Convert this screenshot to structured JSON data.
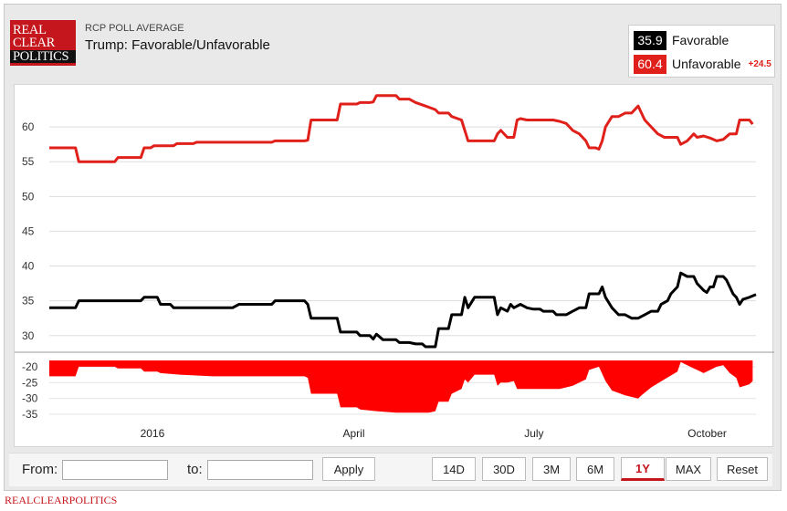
{
  "header": {
    "logo_line1": "REAL",
    "logo_line2": "CLEAR",
    "logo_line3": "POLITICS",
    "supertitle": "RCP POLL AVERAGE",
    "title": "Trump: Favorable/Unfavorable"
  },
  "legend": {
    "items": [
      {
        "value": "35.9",
        "name": "Favorable",
        "color": "#000000"
      },
      {
        "value": "60.4",
        "name": "Unfavorable",
        "color": "#e0201a",
        "spread": "+24.5"
      }
    ]
  },
  "controls": {
    "from_label": "From:",
    "to_label": "to:",
    "apply_label": "Apply",
    "ranges": [
      "14D",
      "30D",
      "3M",
      "6M",
      "1Y",
      "MAX",
      "Reset"
    ],
    "active_range": "1Y"
  },
  "footer": {
    "brand": "REALCLEARPOLITICS"
  },
  "chart_data": {
    "type": "line",
    "x_tick_labels": [
      "2016",
      "April",
      "July",
      "October"
    ],
    "x_tick_positions": [
      0.195,
      0.48,
      0.735,
      0.98
    ],
    "y_ticks": [
      30,
      35,
      40,
      45,
      50,
      55,
      60
    ],
    "ylim": [
      28,
      65
    ],
    "spread_ticks": [
      -20,
      -25,
      -30,
      -35
    ],
    "spread_ylim": [
      -37,
      -18
    ],
    "legend_position": "top-right",
    "grid": true,
    "series": [
      {
        "name": "Favorable",
        "color": "#000000",
        "points": [
          [
            0,
            34
          ],
          [
            0.04,
            34
          ],
          [
            0.045,
            35
          ],
          [
            0.07,
            35
          ],
          [
            0.14,
            35
          ],
          [
            0.145,
            35.5
          ],
          [
            0.165,
            35.5
          ],
          [
            0.17,
            34.5
          ],
          [
            0.185,
            34.5
          ],
          [
            0.19,
            34
          ],
          [
            0.22,
            34
          ],
          [
            0.25,
            34
          ],
          [
            0.28,
            34
          ],
          [
            0.29,
            34.5
          ],
          [
            0.34,
            34.5
          ],
          [
            0.345,
            35
          ],
          [
            0.39,
            35
          ],
          [
            0.395,
            34.5
          ],
          [
            0.4,
            32.5
          ],
          [
            0.44,
            32.5
          ],
          [
            0.445,
            30.5
          ],
          [
            0.47,
            30.5
          ],
          [
            0.475,
            30
          ],
          [
            0.49,
            30
          ],
          [
            0.495,
            29.5
          ],
          [
            0.5,
            30.2
          ],
          [
            0.51,
            29.4
          ],
          [
            0.53,
            29.4
          ],
          [
            0.535,
            29
          ],
          [
            0.55,
            29
          ],
          [
            0.56,
            28.8
          ],
          [
            0.57,
            28.8
          ],
          [
            0.575,
            28.4
          ],
          [
            0.59,
            28.4
          ],
          [
            0.595,
            31
          ],
          [
            0.61,
            31
          ],
          [
            0.615,
            33
          ],
          [
            0.63,
            33
          ],
          [
            0.635,
            35.5
          ],
          [
            0.64,
            34
          ],
          [
            0.65,
            35.5
          ],
          [
            0.67,
            35.5
          ],
          [
            0.68,
            35.5
          ],
          [
            0.685,
            33
          ],
          [
            0.69,
            34
          ],
          [
            0.7,
            33.5
          ],
          [
            0.705,
            34.5
          ],
          [
            0.71,
            34
          ],
          [
            0.72,
            34.5
          ],
          [
            0.73,
            34
          ],
          [
            0.74,
            33.8
          ],
          [
            0.75,
            33.8
          ],
          [
            0.755,
            33.5
          ],
          [
            0.76,
            33.5
          ],
          [
            0.77,
            33.5
          ],
          [
            0.775,
            33
          ],
          [
            0.79,
            33
          ],
          [
            0.8,
            33.5
          ],
          [
            0.81,
            34
          ],
          [
            0.82,
            34
          ],
          [
            0.825,
            36
          ],
          [
            0.84,
            36
          ],
          [
            0.845,
            37
          ],
          [
            0.85,
            35.5
          ],
          [
            0.86,
            34
          ],
          [
            0.87,
            33
          ],
          [
            0.88,
            33
          ],
          [
            0.89,
            32.5
          ],
          [
            0.9,
            32.5
          ],
          [
            0.91,
            33
          ],
          [
            0.92,
            33.5
          ],
          [
            0.93,
            33.5
          ],
          [
            0.935,
            34.5
          ],
          [
            0.945,
            35
          ],
          [
            0.95,
            36
          ],
          [
            0.96,
            37
          ],
          [
            0.965,
            39
          ],
          [
            0.975,
            38.5
          ],
          [
            0.985,
            38.5
          ],
          [
            0.99,
            37.5
          ],
          [
            1.0,
            36.5
          ],
          [
            1.005,
            36.2
          ],
          [
            1.01,
            37
          ],
          [
            1.015,
            37
          ],
          [
            1.02,
            38.5
          ],
          [
            1.03,
            38.5
          ],
          [
            1.035,
            38
          ],
          [
            1.04,
            37
          ],
          [
            1.045,
            36
          ],
          [
            1.05,
            35.5
          ],
          [
            1.055,
            34.5
          ],
          [
            1.06,
            35.2
          ],
          [
            1.07,
            35.5
          ],
          [
            1.08,
            35.9
          ]
        ]
      },
      {
        "name": "Unfavorable",
        "color": "#e0201a",
        "points": [
          [
            0,
            57
          ],
          [
            0.04,
            57
          ],
          [
            0.045,
            55
          ],
          [
            0.07,
            55
          ],
          [
            0.1,
            55
          ],
          [
            0.105,
            55.6
          ],
          [
            0.14,
            55.6
          ],
          [
            0.145,
            57
          ],
          [
            0.155,
            57
          ],
          [
            0.16,
            57.3
          ],
          [
            0.17,
            57.3
          ],
          [
            0.175,
            57.3
          ],
          [
            0.19,
            57.3
          ],
          [
            0.195,
            57.6
          ],
          [
            0.22,
            57.6
          ],
          [
            0.225,
            57.8
          ],
          [
            0.34,
            57.8
          ],
          [
            0.345,
            58
          ],
          [
            0.39,
            58
          ],
          [
            0.395,
            58.1
          ],
          [
            0.4,
            61
          ],
          [
            0.44,
            61
          ],
          [
            0.445,
            63.3
          ],
          [
            0.47,
            63.3
          ],
          [
            0.475,
            63.5
          ],
          [
            0.49,
            63.5
          ],
          [
            0.495,
            63.6
          ],
          [
            0.5,
            64.5
          ],
          [
            0.51,
            64.5
          ],
          [
            0.53,
            64.5
          ],
          [
            0.535,
            64
          ],
          [
            0.55,
            64
          ],
          [
            0.56,
            63.5
          ],
          [
            0.575,
            63
          ],
          [
            0.59,
            62.5
          ],
          [
            0.595,
            62
          ],
          [
            0.6,
            62
          ],
          [
            0.61,
            62
          ],
          [
            0.615,
            61.5
          ],
          [
            0.63,
            61
          ],
          [
            0.635,
            59.5
          ],
          [
            0.64,
            58
          ],
          [
            0.67,
            58
          ],
          [
            0.68,
            58
          ],
          [
            0.685,
            59
          ],
          [
            0.69,
            59.5
          ],
          [
            0.7,
            58.5
          ],
          [
            0.71,
            58.5
          ],
          [
            0.715,
            61
          ],
          [
            0.72,
            61.2
          ],
          [
            0.73,
            61
          ],
          [
            0.74,
            61
          ],
          [
            0.76,
            61
          ],
          [
            0.77,
            61
          ],
          [
            0.78,
            60.8
          ],
          [
            0.79,
            60.5
          ],
          [
            0.8,
            59.5
          ],
          [
            0.81,
            59
          ],
          [
            0.82,
            58
          ],
          [
            0.825,
            57
          ],
          [
            0.835,
            57
          ],
          [
            0.84,
            56.8
          ],
          [
            0.845,
            58
          ],
          [
            0.85,
            60
          ],
          [
            0.86,
            61.5
          ],
          [
            0.87,
            61.5
          ],
          [
            0.88,
            62
          ],
          [
            0.89,
            62
          ],
          [
            0.9,
            63
          ],
          [
            0.905,
            62
          ],
          [
            0.91,
            61
          ],
          [
            0.92,
            60
          ],
          [
            0.93,
            59
          ],
          [
            0.94,
            58.5
          ],
          [
            0.96,
            58.5
          ],
          [
            0.965,
            57.5
          ],
          [
            0.975,
            58
          ],
          [
            0.985,
            59
          ],
          [
            0.99,
            58.5
          ],
          [
            1.0,
            58.7
          ],
          [
            1.01,
            58.4
          ],
          [
            1.02,
            58
          ],
          [
            1.03,
            58.2
          ],
          [
            1.04,
            59
          ],
          [
            1.05,
            59
          ],
          [
            1.055,
            61
          ],
          [
            1.07,
            61
          ],
          [
            1.075,
            60.4
          ]
        ]
      },
      {
        "name": "Spread",
        "color": "#ff0000",
        "points": [
          [
            0,
            -23
          ],
          [
            0.04,
            -23
          ],
          [
            0.045,
            -20
          ],
          [
            0.07,
            -20
          ],
          [
            0.1,
            -20
          ],
          [
            0.105,
            -20.5
          ],
          [
            0.14,
            -20.5
          ],
          [
            0.145,
            -21.5
          ],
          [
            0.165,
            -21.5
          ],
          [
            0.17,
            -22
          ],
          [
            0.2,
            -22.5
          ],
          [
            0.25,
            -23
          ],
          [
            0.34,
            -23
          ],
          [
            0.345,
            -23
          ],
          [
            0.39,
            -23
          ],
          [
            0.395,
            -23.5
          ],
          [
            0.4,
            -28.5
          ],
          [
            0.44,
            -28.5
          ],
          [
            0.445,
            -32.8
          ],
          [
            0.47,
            -32.8
          ],
          [
            0.475,
            -33.5
          ],
          [
            0.5,
            -34
          ],
          [
            0.53,
            -34.5
          ],
          [
            0.56,
            -34.5
          ],
          [
            0.58,
            -34.5
          ],
          [
            0.59,
            -34
          ],
          [
            0.595,
            -31
          ],
          [
            0.61,
            -31
          ],
          [
            0.615,
            -28.5
          ],
          [
            0.63,
            -27
          ],
          [
            0.635,
            -24
          ],
          [
            0.64,
            -25
          ],
          [
            0.65,
            -22.5
          ],
          [
            0.67,
            -22.5
          ],
          [
            0.68,
            -22.5
          ],
          [
            0.685,
            -26
          ],
          [
            0.69,
            -25
          ],
          [
            0.7,
            -25
          ],
          [
            0.71,
            -24.5
          ],
          [
            0.715,
            -27
          ],
          [
            0.73,
            -27
          ],
          [
            0.76,
            -27
          ],
          [
            0.78,
            -27
          ],
          [
            0.8,
            -26
          ],
          [
            0.81,
            -25
          ],
          [
            0.82,
            -24
          ],
          [
            0.825,
            -21
          ],
          [
            0.84,
            -20
          ],
          [
            0.85,
            -24.5
          ],
          [
            0.86,
            -27.5
          ],
          [
            0.88,
            -29
          ],
          [
            0.9,
            -30
          ],
          [
            0.905,
            -29
          ],
          [
            0.92,
            -26.5
          ],
          [
            0.94,
            -24
          ],
          [
            0.96,
            -21.5
          ],
          [
            0.965,
            -18.5
          ],
          [
            0.975,
            -19.5
          ],
          [
            0.985,
            -20.5
          ],
          [
            0.99,
            -21
          ],
          [
            1.0,
            -22
          ],
          [
            1.02,
            -20
          ],
          [
            1.03,
            -19.5
          ],
          [
            1.04,
            -22
          ],
          [
            1.05,
            -23.5
          ],
          [
            1.055,
            -26.5
          ],
          [
            1.07,
            -25.5
          ],
          [
            1.075,
            -24.5
          ]
        ]
      }
    ]
  }
}
